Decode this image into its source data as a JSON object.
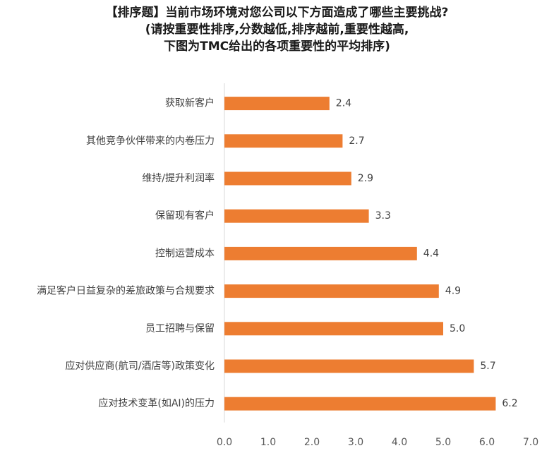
{
  "chart_data": {
    "type": "bar",
    "orientation": "horizontal",
    "title_lines": [
      "【排序题】当前市场环境对您公司以下方面造成了哪些主要挑战?",
      "(请按重要性排序,分数越低,排序越前,重要性越高,",
      "下图为TMC给出的各项重要性的平均排序)"
    ],
    "categories": [
      "获取新客户",
      "其他竞争伙伴带来的内卷压力",
      "维持/提升利润率",
      "保留现有客户",
      "控制运营成本",
      "满足客户日益复杂的差旅政策与合规要求",
      "员工招聘与保留",
      "应对供应商(航司/酒店等)政策变化",
      "应对技术变革(如AI)的压力"
    ],
    "values": [
      2.4,
      2.7,
      2.9,
      3.3,
      4.4,
      4.9,
      5.0,
      5.7,
      6.2
    ],
    "value_labels": [
      "2.4",
      "2.7",
      "2.9",
      "3.3",
      "4.4",
      "4.9",
      "5.0",
      "5.7",
      "6.2"
    ],
    "x_ticks": [
      0,
      1,
      2,
      3,
      4,
      5,
      6,
      7
    ],
    "x_tick_labels": [
      "0.0",
      "1.0",
      "2.0",
      "3.0",
      "4.0",
      "5.0",
      "6.0",
      "7.0"
    ],
    "xlim": [
      0,
      7
    ],
    "grid": false,
    "legend": "none",
    "bar_color": "#ED7D31",
    "axis_color": "#D9D9D9"
  }
}
